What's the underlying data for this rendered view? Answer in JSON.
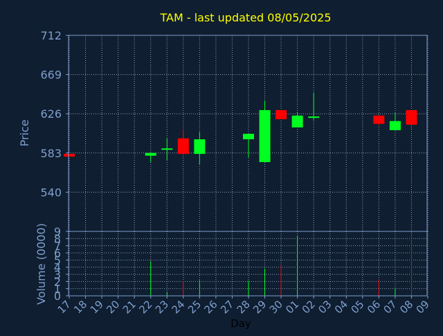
{
  "chart_data": {
    "type": "candlestick",
    "title": "TAM - last updated 08/05/2025",
    "xlabel": "Day",
    "price_panel": {
      "ylabel": "Price",
      "ylim": [
        497,
        712
      ],
      "yticks": [
        "712",
        "669",
        "626",
        "583",
        "540"
      ],
      "grid": true
    },
    "volume_panel": {
      "ylabel": "Volume (0000)",
      "ylim": [
        0,
        9
      ],
      "yticks": [
        "0",
        "1",
        "2",
        "3",
        "4",
        "5",
        "6",
        "7",
        "8",
        "9"
      ],
      "grid": true
    },
    "x_ticks": [
      "17",
      "18",
      "19",
      "20",
      "21",
      "22",
      "23",
      "24",
      "25",
      "26",
      "27",
      "28",
      "29",
      "30",
      "01",
      "02",
      "03",
      "04",
      "05",
      "06",
      "07",
      "08",
      "09"
    ],
    "candles": [
      {
        "day": "17",
        "open": 582,
        "high": 582,
        "low": 579,
        "close": 579,
        "volume": 0
      },
      {
        "day": "22",
        "open": 580,
        "high": 583,
        "low": 573,
        "close": 583,
        "volume": 4.8
      },
      {
        "day": "23",
        "open": 587,
        "high": 599,
        "low": 575,
        "close": 588,
        "volume": 0.5
      },
      {
        "day": "24",
        "open": 599,
        "high": 608,
        "low": 581,
        "close": 582,
        "volume": 2.0
      },
      {
        "day": "25",
        "open": 582,
        "high": 606,
        "low": 570,
        "close": 598,
        "volume": 2.2
      },
      {
        "day": "28",
        "open": 598,
        "high": 604,
        "low": 578,
        "close": 604,
        "volume": 2.1
      },
      {
        "day": "29",
        "open": 573,
        "high": 640,
        "low": 573,
        "close": 630,
        "volume": 3.8
      },
      {
        "day": "30",
        "open": 630,
        "high": 630,
        "low": 620,
        "close": 620,
        "volume": 4.2
      },
      {
        "day": "01",
        "open": 611,
        "high": 628,
        "low": 611,
        "close": 624,
        "volume": 8.4
      },
      {
        "day": "02",
        "open": 622,
        "high": 649,
        "low": 619,
        "close": 623,
        "volume": 0
      },
      {
        "day": "06",
        "open": 624,
        "high": 624,
        "low": 613,
        "close": 615,
        "volume": 2.3
      },
      {
        "day": "07",
        "open": 608,
        "high": 627,
        "low": 608,
        "close": 618,
        "volume": 1.0
      },
      {
        "day": "08",
        "open": 630,
        "high": 630,
        "low": 610,
        "close": 614,
        "volume": 9.2
      }
    ],
    "colors": {
      "background": "#0f1e30",
      "up": "#00ff20",
      "down": "#ff0000",
      "title": "#ffff00",
      "axis_text": "#7f9fcf",
      "frame": "#7f9fcf",
      "grid": "#8fa0b8",
      "xlabel": "#000000"
    }
  }
}
